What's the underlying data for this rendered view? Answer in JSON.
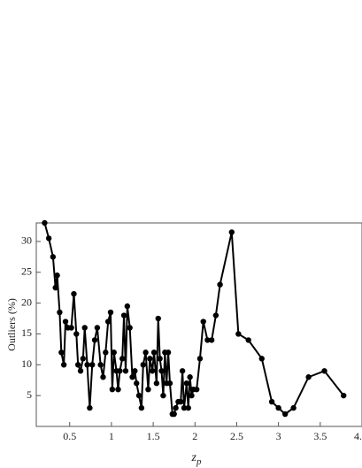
{
  "chart_data": {
    "type": "line",
    "ylabel": "Outliers (%)",
    "xlabel": {
      "main": "z",
      "sub": "p"
    },
    "color": "#000000",
    "xlim": [
      0.1,
      4.0
    ],
    "ylim": [
      0,
      33
    ],
    "xticks": [
      0.5,
      1.0,
      1.5,
      2.0,
      2.5,
      3.0,
      3.5,
      {
        "value": 4.0,
        "label": "4."
      }
    ],
    "yticks": [
      5,
      10,
      15,
      20,
      25,
      30
    ],
    "x": [
      0.2,
      0.25,
      0.3,
      0.33,
      0.35,
      0.38,
      0.4,
      0.43,
      0.45,
      0.48,
      0.52,
      0.55,
      0.58,
      0.6,
      0.63,
      0.66,
      0.68,
      0.71,
      0.74,
      0.77,
      0.8,
      0.83,
      0.87,
      0.9,
      0.93,
      0.96,
      0.99,
      1.01,
      1.03,
      1.06,
      1.08,
      1.1,
      1.13,
      1.15,
      1.17,
      1.19,
      1.22,
      1.25,
      1.28,
      1.3,
      1.33,
      1.36,
      1.38,
      1.41,
      1.44,
      1.46,
      1.49,
      1.51,
      1.54,
      1.56,
      1.58,
      1.6,
      1.62,
      1.64,
      1.66,
      1.68,
      1.7,
      1.73,
      1.75,
      1.77,
      1.8,
      1.83,
      1.85,
      1.87,
      1.9,
      1.92,
      1.94,
      1.96,
      1.98,
      2.02,
      2.06,
      2.1,
      2.15,
      2.2,
      2.25,
      2.3,
      2.44,
      2.52,
      2.64,
      2.8,
      2.92,
      3.0,
      3.08,
      3.18,
      3.36,
      3.55,
      3.78
    ],
    "values": [
      33,
      30.5,
      27.5,
      22.5,
      24.5,
      18.5,
      12,
      10,
      17,
      16,
      16,
      21.5,
      15,
      10,
      9,
      11,
      16,
      10,
      3,
      10,
      14,
      16,
      10,
      8,
      12,
      17,
      18.5,
      6,
      12,
      9,
      6,
      9,
      11,
      18,
      9,
      19.5,
      16,
      8,
      9,
      7,
      5,
      3,
      10,
      12,
      6,
      11,
      9,
      12,
      7,
      17.5,
      11,
      9,
      5,
      12,
      7,
      12,
      7,
      2,
      2,
      3,
      4,
      4,
      9,
      3,
      7,
      3,
      8,
      5,
      6,
      6,
      11,
      17,
      14,
      14,
      18,
      23,
      31.5,
      15,
      14,
      11,
      4,
      3,
      2,
      3,
      8,
      9,
      5
    ]
  }
}
